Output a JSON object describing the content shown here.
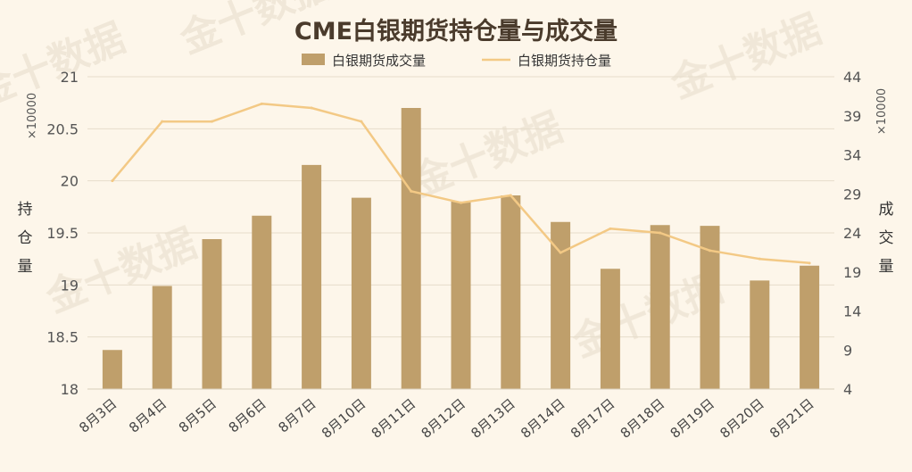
{
  "chart_data": {
    "type": "bar+line",
    "title": "CME白银期货持仓量与成交量",
    "categories": [
      "8月3日",
      "8月4日",
      "8月5日",
      "8月6日",
      "8月7日",
      "8月10日",
      "8月11日",
      "8月12日",
      "8月13日",
      "8月14日",
      "8月17日",
      "8月18日",
      "8月19日",
      "8月20日",
      "8月21日"
    ],
    "series": [
      {
        "name": "白银期货成交量",
        "type": "bar",
        "axis": "right",
        "color": "#bf9f6b",
        "values": [
          9.0,
          17.2,
          23.2,
          26.2,
          32.7,
          28.5,
          40.0,
          28.0,
          28.8,
          25.4,
          19.4,
          25.0,
          24.9,
          17.9,
          19.8
        ]
      },
      {
        "name": "白银期货持仓量",
        "type": "line",
        "axis": "left",
        "color": "#f3c985",
        "values": [
          20.0,
          20.57,
          20.57,
          20.74,
          20.7,
          20.57,
          19.9,
          19.79,
          19.86,
          19.31,
          19.54,
          19.5,
          19.33,
          19.25,
          19.21
        ]
      }
    ],
    "y_left": {
      "label": "持仓量",
      "unit": "×10000",
      "range": [
        18,
        21
      ],
      "ticks": [
        "18",
        "18.5",
        "19",
        "19.5",
        "20",
        "20.5",
        "21"
      ]
    },
    "y_right": {
      "label": "成交量",
      "unit": "×10000",
      "range": [
        4,
        44
      ],
      "ticks": [
        "4",
        "9",
        "14",
        "19",
        "24",
        "29",
        "34",
        "39",
        "44"
      ]
    },
    "legend_position": "top-center",
    "grid": "horizontal",
    "watermark": "金十数据"
  }
}
